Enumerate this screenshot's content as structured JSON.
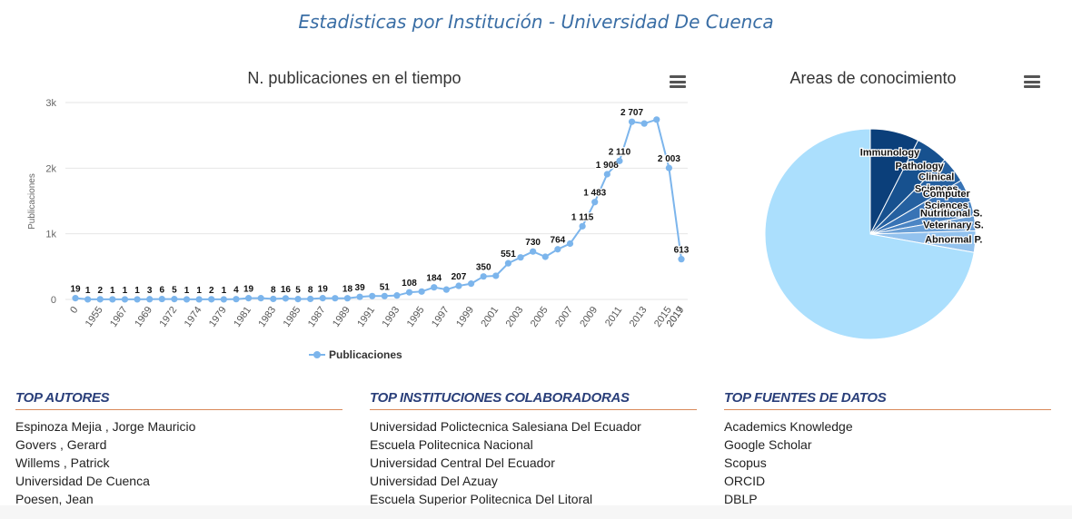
{
  "page": {
    "title": "Estadisticas por Institución - Universidad De Cuenca"
  },
  "line_chart": {
    "title": "N. publicaciones en el tiempo",
    "menu_icon": "hamburger-menu-icon"
  },
  "pie_chart": {
    "title": "Areas de conocimiento",
    "menu_icon": "hamburger-menu-icon"
  },
  "chart_data": [
    {
      "type": "line",
      "title": "N. publicaciones en el tiempo",
      "ylabel": "Publicaciones",
      "xlabel": "",
      "ylim": [
        0,
        3000
      ],
      "yticks": [
        "0",
        "1k",
        "2k",
        "3k"
      ],
      "ytick_values": [
        0,
        1000,
        2000,
        3000
      ],
      "grid": true,
      "legend": "bottom-center",
      "x_tick_labels": [
        "0",
        "1955",
        "1967",
        "1969",
        "1972",
        "1974",
        "1979",
        "1981",
        "1983",
        "1985",
        "1987",
        "1989",
        "1991",
        "1993",
        "1995",
        "1997",
        "1999",
        "2001",
        "2003",
        "2005",
        "2007",
        "2009",
        "2011",
        "2013",
        "2015",
        "2017",
        "2019"
      ],
      "series": [
        {
          "name": "Publicaciones",
          "color": "#7cb5ec",
          "values": [
            19,
            1,
            2,
            1,
            1,
            1,
            3,
            6,
            5,
            1,
            1,
            2,
            1,
            4,
            19,
            19,
            8,
            16,
            5,
            8,
            19,
            18,
            18,
            39,
            51,
            51,
            60,
            108,
            120,
            184,
            150,
            207,
            240,
            350,
            360,
            551,
            640,
            730,
            650,
            764,
            850,
            1115,
            1483,
            1908,
            2110,
            2707,
            2680,
            2740,
            2003,
            613
          ],
          "labels": [
            "19",
            "1",
            "2",
            "1",
            "1",
            "1",
            "3",
            "6",
            "5",
            "1",
            "1",
            "2",
            "1",
            "4",
            "19",
            "",
            "8",
            "16",
            "5",
            "8",
            "19",
            "",
            "18",
            "39",
            "",
            "51",
            "",
            "108",
            "",
            "184",
            "",
            "207",
            "",
            "350",
            "",
            "551",
            "",
            "730",
            "",
            "764",
            "",
            "1 115",
            "1 483",
            "1 908",
            "2 110",
            "2 707",
            "",
            "",
            "2 003",
            "613"
          ]
        }
      ]
    },
    {
      "type": "pie",
      "title": "Areas de conocimiento",
      "series": [
        {
          "name": "Immunology",
          "value": 7.5,
          "color": "#0b3f7a"
        },
        {
          "name": "Pathology",
          "value": 5.0,
          "color": "#17518f"
        },
        {
          "name": "Clinical Sciences",
          "value": 4.0,
          "color": "#2560a0"
        },
        {
          "name": "Computer Sciences",
          "value": 3.5,
          "color": "#3873b5"
        },
        {
          "name": "Nutritional S.",
          "value": 2.2,
          "color": "#4b85c4"
        },
        {
          "name": "Veterinary S.",
          "value": 2.3,
          "color": "#6a9fd6"
        },
        {
          "name": "Abnormal P.",
          "value": 3.3,
          "color": "#93c2ee"
        },
        {
          "name": "",
          "value": 72.2,
          "color": "#abdffd"
        }
      ]
    }
  ],
  "top_autores": {
    "heading": "TOP AUTORES",
    "items": [
      "Espinoza Mejia , Jorge Mauricio",
      "Govers , Gerard",
      "Willems , Patrick",
      "Universidad De Cuenca",
      "Poesen, Jean"
    ]
  },
  "top_instituciones": {
    "heading": "TOP INSTITUCIONES COLABORADORAS",
    "items": [
      "Universidad Polictecnica Salesiana Del Ecuador",
      "Escuela Politecnica Nacional",
      "Universidad Central Del Ecuador",
      "Universidad Del Azuay",
      "Escuela Superior Politecnica Del Litoral"
    ]
  },
  "top_fuentes": {
    "heading": "TOP FUENTES DE DATOS",
    "items": [
      "Academics Knowledge",
      "Google Scholar",
      "Scopus",
      "ORCID",
      "DBLP"
    ]
  }
}
